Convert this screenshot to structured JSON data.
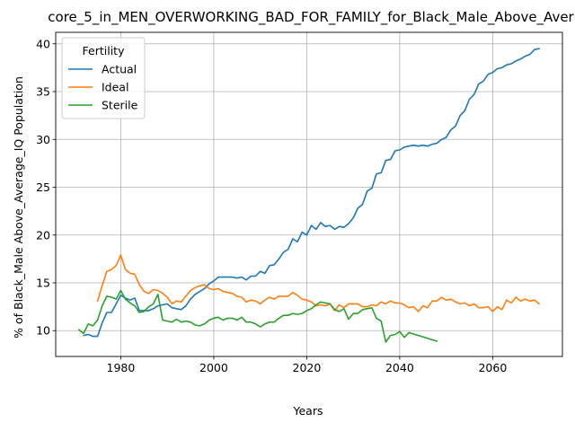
{
  "chart_data": {
    "type": "line",
    "title": "core_5_in_MEN_OVERWORKING_BAD_FOR_FAMILY_for_Black_Male_Above_Aver",
    "xlabel": "Years",
    "ylabel": "% of Black_Male Above_Average_IQ Population",
    "xlim": [
      1966,
      2075
    ],
    "ylim": [
      7.3,
      41.2
    ],
    "xticks": [
      1980,
      2000,
      2020,
      2040,
      2060
    ],
    "yticks": [
      10,
      15,
      20,
      25,
      30,
      35,
      40
    ],
    "grid": true,
    "legend": {
      "title": "Fertility",
      "placement": "top-left"
    },
    "series": [
      {
        "name": "Actual",
        "color": "#1f77b4",
        "x": [
          1972,
          1973,
          1974,
          1975,
          1976,
          1977,
          1978,
          1979,
          1980,
          1981,
          1982,
          1983,
          1984,
          1985,
          1986,
          1987,
          1988,
          1989,
          1990,
          1991,
          1992,
          1993,
          1994,
          1995,
          1996,
          1997,
          1998,
          1999,
          2000,
          2001,
          2002,
          2003,
          2004,
          2005,
          2006,
          2007,
          2008,
          2009,
          2010,
          2011,
          2012,
          2013,
          2014,
          2015,
          2016,
          2017,
          2018,
          2019,
          2020,
          2021,
          2022,
          2023,
          2024,
          2025,
          2026,
          2027,
          2028,
          2029,
          2030,
          2031,
          2032,
          2033,
          2034,
          2035,
          2036,
          2037,
          2038,
          2039,
          2040,
          2041,
          2042,
          2043,
          2044,
          2045,
          2046,
          2047,
          2048,
          2049,
          2050,
          2051,
          2052,
          2053,
          2054,
          2055,
          2056,
          2057,
          2058,
          2059,
          2060,
          2061,
          2062,
          2063,
          2064,
          2065,
          2066,
          2067,
          2068,
          2069,
          2070
        ],
        "values": [
          9.5,
          9.6,
          9.4,
          9.4,
          10.8,
          11.9,
          11.9,
          12.8,
          13.7,
          13.4,
          13.2,
          13.4,
          12.1,
          12.1,
          12.1,
          12.3,
          12.6,
          12.7,
          12.8,
          12.4,
          12.3,
          12.2,
          12.6,
          13.3,
          13.8,
          14.1,
          14.4,
          14.9,
          15.2,
          15.6,
          15.6,
          15.6,
          15.6,
          15.5,
          15.6,
          15.3,
          15.7,
          15.7,
          16.2,
          16.0,
          16.8,
          16.9,
          17.5,
          18.2,
          18.5,
          19.6,
          19.3,
          20.3,
          20.0,
          21.0,
          20.6,
          21.3,
          20.9,
          21.0,
          20.6,
          20.9,
          20.8,
          21.2,
          21.8,
          22.8,
          23.2,
          24.6,
          24.9,
          26.4,
          26.5,
          27.8,
          27.9,
          28.8,
          28.9,
          29.2,
          29.3,
          29.4,
          29.3,
          29.4,
          29.3,
          29.5,
          29.6,
          30.0,
          30.2,
          31.0,
          31.4,
          32.5,
          33.0,
          34.2,
          34.7,
          35.8,
          36.1,
          36.8,
          37.0,
          37.4,
          37.5,
          37.8,
          37.9,
          38.2,
          38.4,
          38.7,
          38.9,
          39.4,
          39.5
        ]
      },
      {
        "name": "Ideal",
        "color": "#ff7f0e",
        "x": [
          1975,
          1976,
          1977,
          1978,
          1979,
          1980,
          1981,
          1982,
          1983,
          1984,
          1985,
          1986,
          1987,
          1988,
          1989,
          1990,
          1991,
          1992,
          1993,
          1994,
          1995,
          1996,
          1997,
          1998,
          1999,
          2000,
          2001,
          2002,
          2003,
          2004,
          2005,
          2006,
          2007,
          2008,
          2009,
          2010,
          2011,
          2012,
          2013,
          2014,
          2015,
          2016,
          2017,
          2018,
          2019,
          2020,
          2021,
          2022,
          2023,
          2024,
          2025,
          2026,
          2027,
          2028,
          2029,
          2030,
          2031,
          2032,
          2033,
          2034,
          2035,
          2036,
          2037,
          2038,
          2039,
          2040,
          2041,
          2042,
          2043,
          2044,
          2045,
          2046,
          2047,
          2048,
          2049,
          2050,
          2051,
          2052,
          2053,
          2054,
          2055,
          2056,
          2057,
          2058,
          2059,
          2060,
          2061,
          2062,
          2063,
          2064,
          2065,
          2066,
          2067,
          2068,
          2069,
          2070
        ],
        "values": [
          13.1,
          14.7,
          16.2,
          16.4,
          16.8,
          17.9,
          16.4,
          16.0,
          15.9,
          14.8,
          14.1,
          13.9,
          14.3,
          14.2,
          13.9,
          13.5,
          12.8,
          13.1,
          13.0,
          13.6,
          14.2,
          14.5,
          14.7,
          14.8,
          14.4,
          14.3,
          14.4,
          14.1,
          14.0,
          13.9,
          13.6,
          13.5,
          13.0,
          13.2,
          13.1,
          12.8,
          13.2,
          13.5,
          13.3,
          13.6,
          13.6,
          13.6,
          14.0,
          13.7,
          13.3,
          13.2,
          13.0,
          12.6,
          12.7,
          12.6,
          12.8,
          12.1,
          12.7,
          12.4,
          12.8,
          12.8,
          12.8,
          12.5,
          12.5,
          12.7,
          12.6,
          13.0,
          12.8,
          13.1,
          12.9,
          12.9,
          12.7,
          12.4,
          12.5,
          12.0,
          12.6,
          12.4,
          13.1,
          13.1,
          13.5,
          13.2,
          13.3,
          13.0,
          12.8,
          12.9,
          12.6,
          12.8,
          12.4,
          12.4,
          12.5,
          12.0,
          12.5,
          12.2,
          13.2,
          12.9,
          13.5,
          13.1,
          13.3,
          13.1,
          13.2,
          12.8
        ]
      },
      {
        "name": "Sterile",
        "color": "#2ca02c",
        "x": [
          1971,
          1972,
          1973,
          1974,
          1975,
          1976,
          1977,
          1978,
          1979,
          1980,
          1981,
          1982,
          1983,
          1984,
          1985,
          1986,
          1987,
          1988,
          1989,
          1990,
          1991,
          1992,
          1993,
          1994,
          1995,
          1996,
          1997,
          1998,
          1999,
          2000,
          2001,
          2002,
          2003,
          2004,
          2005,
          2006,
          2007,
          2008,
          2009,
          2010,
          2011,
          2012,
          2013,
          2014,
          2015,
          2016,
          2017,
          2018,
          2019,
          2020,
          2021,
          2022,
          2023,
          2024,
          2025,
          2026,
          2027,
          2028,
          2029,
          2030,
          2031,
          2032,
          2033,
          2034,
          2035,
          2036,
          2037,
          2038,
          2039,
          2040,
          2041,
          2042,
          2048
        ],
        "values": [
          10.1,
          9.7,
          10.7,
          10.5,
          11.1,
          12.6,
          13.6,
          13.5,
          13.3,
          14.2,
          13.3,
          12.9,
          12.6,
          11.9,
          12.0,
          12.5,
          12.8,
          13.8,
          11.1,
          11.0,
          10.9,
          11.2,
          10.9,
          11.0,
          10.9,
          10.6,
          10.5,
          10.7,
          11.1,
          11.3,
          11.4,
          11.1,
          11.3,
          11.3,
          11.1,
          11.4,
          10.9,
          10.9,
          10.7,
          10.4,
          10.7,
          10.9,
          10.9,
          11.3,
          11.6,
          11.6,
          11.8,
          11.7,
          11.8,
          12.1,
          12.3,
          12.7,
          13.0,
          12.9,
          12.8,
          12.2,
          12.0,
          12.3,
          11.2,
          11.8,
          11.8,
          12.2,
          12.3,
          12.4,
          11.3,
          11.0,
          8.8,
          9.5,
          9.6,
          9.9,
          9.3,
          9.8,
          8.9
        ]
      }
    ]
  }
}
